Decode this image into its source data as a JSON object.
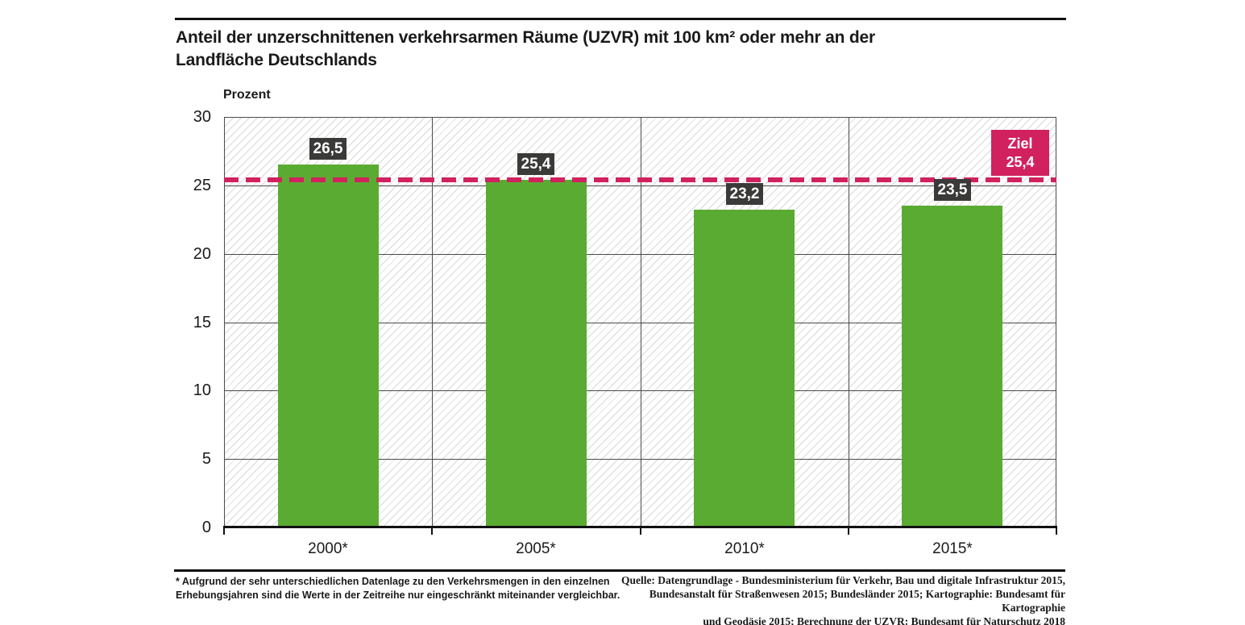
{
  "header": {
    "title_line1": "Anteil der unzerschnittenen verkehrsarmen Räume (UZVR) mit 100 km² oder mehr an der",
    "title_line2": "Landfläche Deutschlands"
  },
  "chart_data": {
    "type": "bar",
    "title": "Anteil der unzerschnittenen verkehrsarmen Räume (UZVR) mit 100 km² oder mehr an der Landfläche Deutschlands",
    "xlabel": "",
    "ylabel": "Prozent",
    "ylim": [
      0,
      30
    ],
    "yticks": [
      0,
      5,
      10,
      15,
      20,
      25,
      30
    ],
    "grid": true,
    "categories": [
      "2000*",
      "2005*",
      "2010*",
      "2015*"
    ],
    "values": [
      26.5,
      25.4,
      23.2,
      23.5
    ],
    "value_labels": [
      "26,5",
      "25,4",
      "23,2",
      "23,5"
    ],
    "target": {
      "value": 25.4,
      "label_line1": "Ziel",
      "label_line2": "25,4"
    },
    "colors": {
      "bar": "#5aab32",
      "target": "#d2215f",
      "value_label_bg": "#3a3a39",
      "value_label_text": "#ffffff",
      "grid": "#4b4b4b",
      "axis": "#111111",
      "hatch": "#d8d8d8",
      "text": "#1a1a1a"
    }
  },
  "footnote": {
    "line1": "* Aufgrund der sehr unterschiedlichen Datenlage zu den Verkehrsmengen in den einzelnen",
    "line2": "Erhebungsjahren sind die Werte in der Zeitreihe nur eingeschränkt miteinander vergleichbar."
  },
  "source": {
    "line1": "Quelle: Datengrundlage - Bundesministerium für Verkehr, Bau und digitale Infrastruktur 2015,",
    "line2": "Bundesanstalt für Straßenwesen 2015; Bundesländer 2015; Kartographie: Bundesamt für Kartographie",
    "line3": "und Geodäsie 2015;  Berechnung der UZVR: Bundesamt für Naturschutz 2018"
  }
}
